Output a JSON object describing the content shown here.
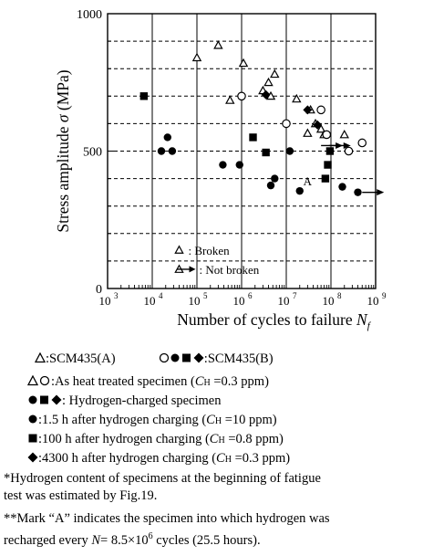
{
  "chart_data": {
    "type": "scatter",
    "x_scale": "log",
    "xlim": [
      1000,
      1000000000
    ],
    "ylim": [
      0,
      1000
    ],
    "y_ticks": [
      0,
      500,
      1000
    ],
    "y_grid_every": 100,
    "x_tick_labels": [
      {
        "base": "10",
        "exp": "3"
      },
      {
        "base": "10",
        "exp": "4"
      },
      {
        "base": "10",
        "exp": "5"
      },
      {
        "base": "10",
        "exp": "6"
      },
      {
        "base": "10",
        "exp": "7"
      },
      {
        "base": "10",
        "exp": "8"
      },
      {
        "base": "10",
        "exp": "9"
      }
    ],
    "xlabel": "Number of cycles to failure ",
    "xlabel_symbol": "N",
    "xlabel_sub": "f",
    "ylabel": "Stress amplitude ",
    "ylabel_symbol": "σ",
    "ylabel_unit": " (MPa)",
    "legend": {
      "broken": ": Broken",
      "not_broken": ": Not broken"
    },
    "annotation": {
      "text": "A",
      "x": 24000000,
      "y": 375
    },
    "series": [
      {
        "name": "SCM435(A) as heat treated",
        "marker": "triangle-open",
        "points": [
          {
            "x": 100000,
            "y": 840
          },
          {
            "x": 300000,
            "y": 885
          },
          {
            "x": 1100000,
            "y": 820
          },
          {
            "x": 550000,
            "y": 685
          },
          {
            "x": 3000000,
            "y": 720
          },
          {
            "x": 4000000,
            "y": 750
          },
          {
            "x": 4500000,
            "y": 700
          },
          {
            "x": 5500000,
            "y": 780
          },
          {
            "x": 17000000,
            "y": 690
          },
          {
            "x": 35000000,
            "y": 650
          },
          {
            "x": 45000000,
            "y": 600
          },
          {
            "x": 60000000,
            "y": 580
          },
          {
            "x": 200000000,
            "y": 560
          },
          {
            "x": 30000000,
            "y": 565
          },
          {
            "x": 70000000,
            "y": 560
          }
        ]
      },
      {
        "name": "SCM435(B) as heat treated",
        "marker": "circle-open",
        "points": [
          {
            "x": 1000000,
            "y": 700
          },
          {
            "x": 10000000,
            "y": 600
          },
          {
            "x": 60000000,
            "y": 650
          },
          {
            "x": 80000000,
            "y": 560
          },
          {
            "x": 250000000,
            "y": 500
          },
          {
            "x": 500000000,
            "y": 530
          }
        ]
      },
      {
        "name": "1.5 h after hydrogen charging",
        "marker": "circle-filled",
        "points": [
          {
            "x": 12000000,
            "y": 500
          },
          {
            "x": 16000,
            "y": 500
          },
          {
            "x": 22000,
            "y": 550
          },
          {
            "x": 28000,
            "y": 500
          },
          {
            "x": 380000,
            "y": 450
          },
          {
            "x": 900000,
            "y": 450
          },
          {
            "x": 4500000,
            "y": 375
          },
          {
            "x": 5500000,
            "y": 400
          },
          {
            "x": 20000000,
            "y": 355
          },
          {
            "x": 180000000,
            "y": 370
          },
          {
            "x": 400000000,
            "y": 350
          }
        ]
      },
      {
        "name": "100 h after hydrogen charging",
        "marker": "square-filled",
        "points": [
          {
            "x": 6500,
            "y": 700
          },
          {
            "x": 1800000,
            "y": 550
          },
          {
            "x": 3500000,
            "y": 495
          },
          {
            "x": 75000000,
            "y": 400
          },
          {
            "x": 85000000,
            "y": 450
          },
          {
            "x": 95000000,
            "y": 500
          }
        ]
      },
      {
        "name": "4300 h after hydrogen charging",
        "marker": "diamond-filled",
        "points": [
          {
            "x": 3500000,
            "y": 705
          },
          {
            "x": 30000000,
            "y": 650
          },
          {
            "x": 50000000,
            "y": 595
          }
        ]
      }
    ],
    "not_broken_arrows": [
      {
        "x": 60000000,
        "y": 520
      },
      {
        "x": 90000000,
        "y": 520
      },
      {
        "x": 500000000,
        "y": 350
      }
    ]
  },
  "caption": {
    "legend_a": ":SCM435(A)",
    "legend_b": ":SCM435(B)",
    "heat_treated": ":As heat treated specimen (",
    "heat_treated_c": "C",
    "heat_treated_sub": "H",
    "heat_treated_end": " =0.3 ppm)",
    "hydrogen_charged": ": Hydrogen-charged specimen",
    "h15": ":1.5 h after hydrogen charging (",
    "h15_c": "C",
    "h15_sub": "H",
    "h15_end": " =10 ppm)",
    "h100": ":100 h after hydrogen charging (",
    "h100_c": "C",
    "h100_sub": "H",
    "h100_end": " =0.8 ppm)",
    "h4300": ":4300 h after hydrogen charging (",
    "h4300_c": "C",
    "h4300_sub": "H",
    "h4300_end": " =0.3 ppm)",
    "note1_line1": "*Hydrogen content of specimens at the beginning of fatigue",
    "note1_line2": "test was estimated by Fig.19.",
    "note2_line1": "**Mark “A” indicates the specimen into which hydrogen was",
    "note2_line2_pre": "recharged every ",
    "note2_line2_n": "N",
    "note2_line2_mid": "= 8.5×10",
    "note2_line2_exp": "6",
    "note2_line2_post": " cycles (25.5 hours)."
  },
  "colors": {
    "ink": "#000000",
    "grid": "#000000",
    "background": "#ffffff"
  }
}
